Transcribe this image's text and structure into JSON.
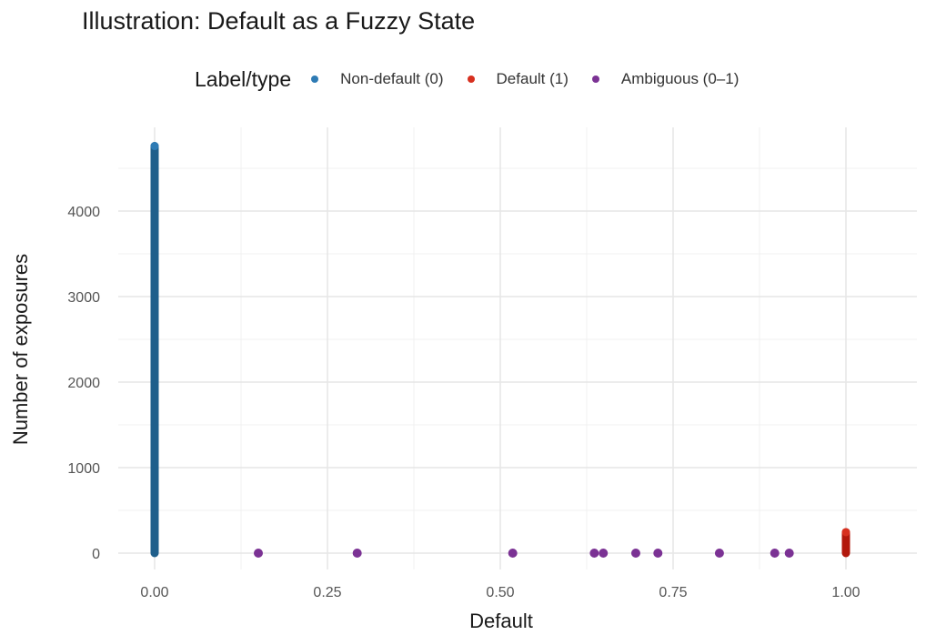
{
  "chart_data": {
    "type": "scatter",
    "title": "Illustration: Default as a Fuzzy State",
    "xlabel": "Default",
    "ylabel": "Number of exposures",
    "xlim": [
      -0.05,
      1.05
    ],
    "ylim": [
      -100,
      4950
    ],
    "x_ticks": [
      "0.00",
      "0.25",
      "0.50",
      "0.75",
      "1.00"
    ],
    "y_ticks": [
      "0",
      "1000",
      "2000",
      "3000",
      "4000"
    ],
    "grid": true,
    "legend_position": "top",
    "legend_title": "Label/type",
    "series": [
      {
        "name": "Non-default (0)",
        "color": "#1f5f8b",
        "description": "Stacked points at x=0 from 0 to ~4760 exposures",
        "x": [
          0.0
        ],
        "y_range": [
          0,
          4760
        ]
      },
      {
        "name": "Default (1)",
        "color": "#b2180c",
        "description": "Stacked points at x=1 from 0 to ~245 exposures",
        "x": [
          1.0
        ],
        "y_range": [
          0,
          245
        ]
      },
      {
        "name": "Ambiguous (0–1)",
        "color": "#7b3294",
        "x": [
          0.15,
          0.293,
          0.518,
          0.636,
          0.649,
          0.696,
          0.728,
          0.817,
          0.897,
          0.918
        ],
        "y": [
          0,
          0,
          0,
          0,
          0,
          0,
          0,
          0,
          0,
          0
        ]
      }
    ]
  },
  "legend": {
    "title": "Label/type",
    "items": [
      {
        "label": "Non-default (0)",
        "color": "#2e7bb4"
      },
      {
        "label": "Default (1)",
        "color": "#d7301f"
      },
      {
        "label": "Ambiguous (0–1)",
        "color": "#7b3294"
      }
    ]
  }
}
